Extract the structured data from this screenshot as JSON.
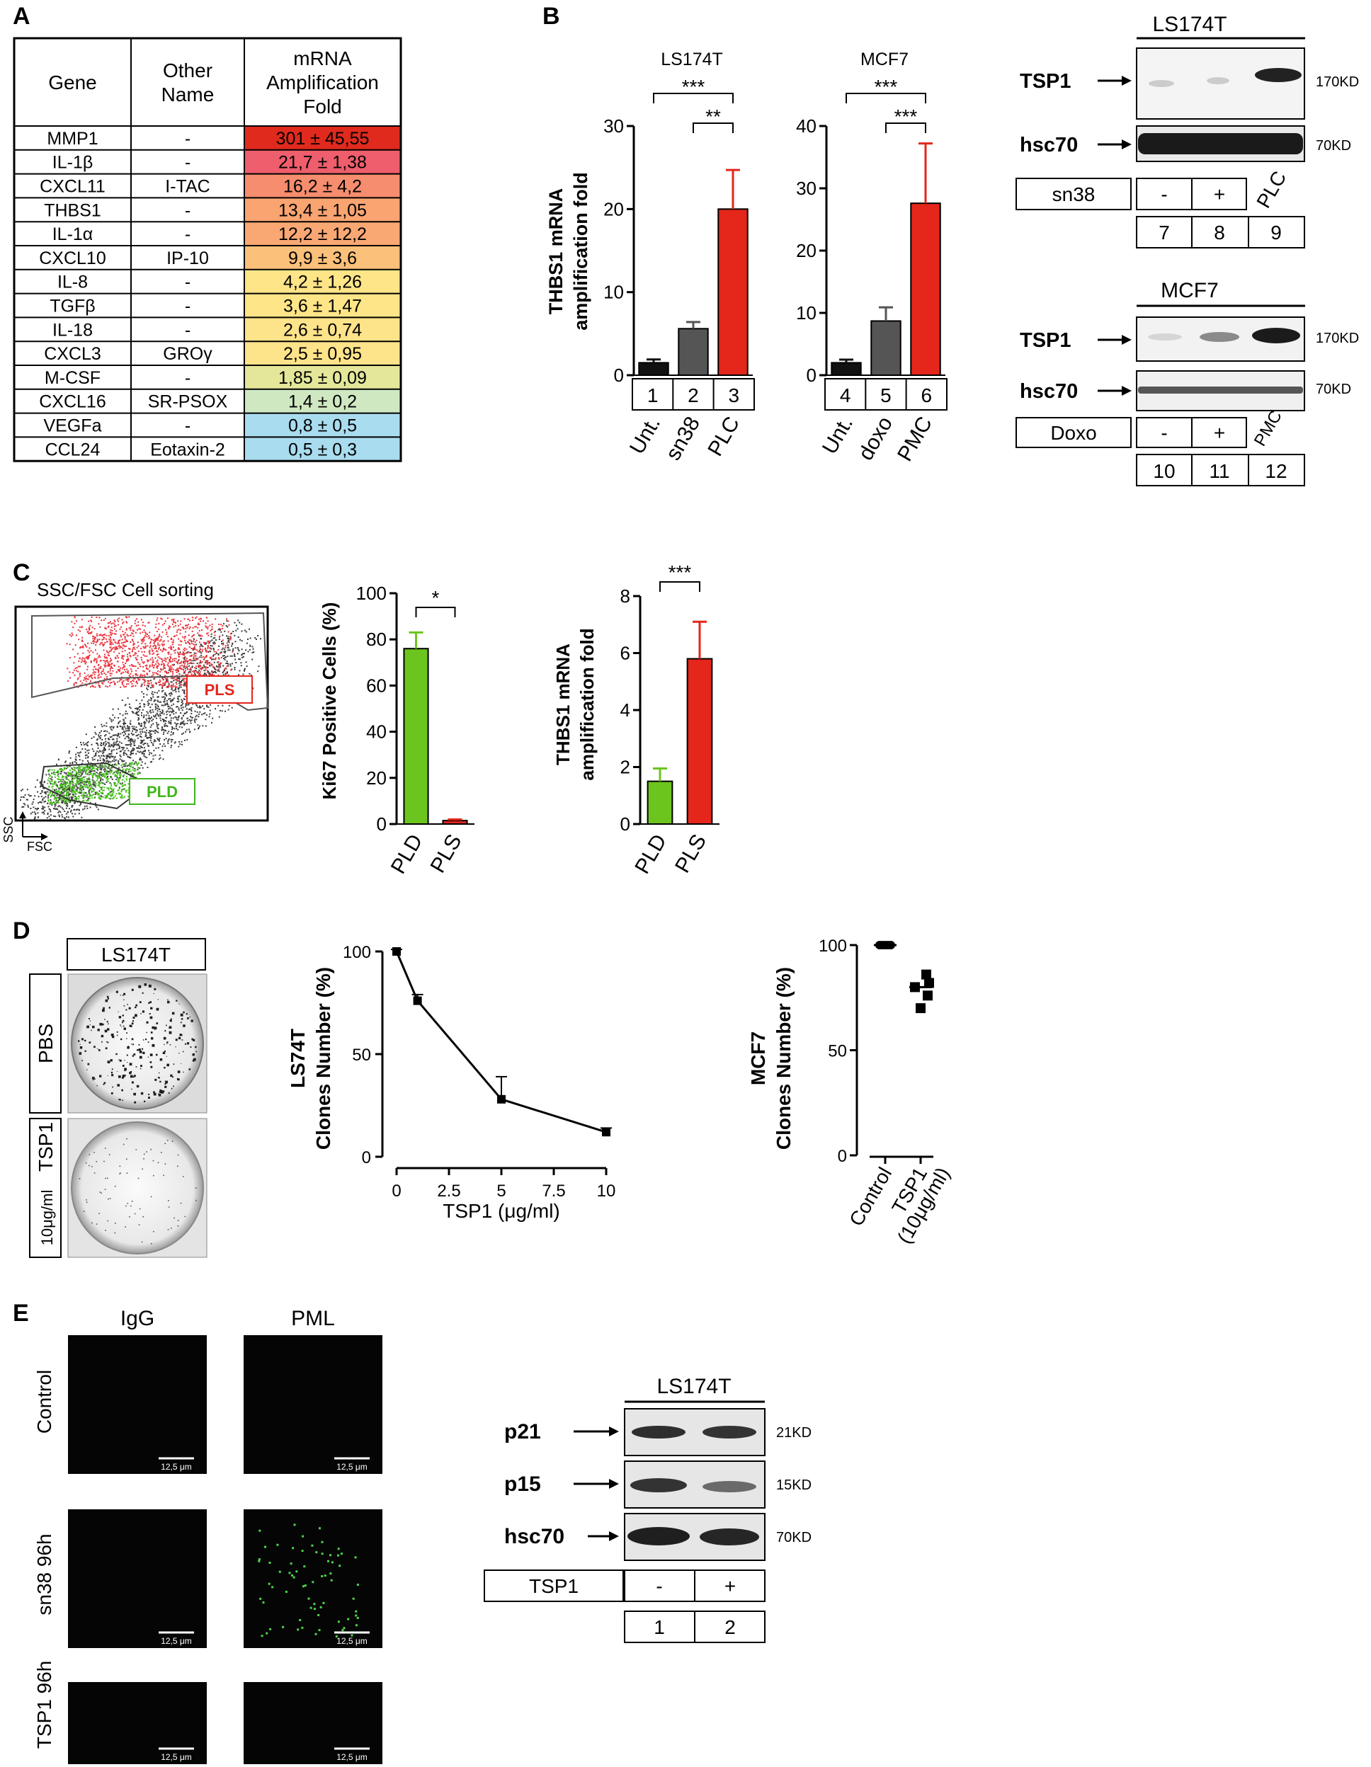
{
  "panel_labels": [
    "A",
    "B",
    "C",
    "D",
    "E"
  ],
  "panel_a": {
    "headers": [
      "Gene",
      "Other Name",
      "mRNA Amplification Fold"
    ],
    "header_lines": [
      [
        "Gene"
      ],
      [
        "Other",
        "Name"
      ],
      [
        "mRNA",
        "Amplification",
        "Fold"
      ]
    ],
    "rows": [
      {
        "gene": "MMP1",
        "other": "-",
        "fold": "301 ± 45,55",
        "color": "#df2a1d"
      },
      {
        "gene": "IL-1β",
        "other": "-",
        "fold": "21,7 ± 1,38",
        "color": "#ee5e6c"
      },
      {
        "gene": "CXCL11",
        "other": "I-TAC",
        "fold": "16,2 ± 4,2",
        "color": "#f58d6e"
      },
      {
        "gene": "THBS1",
        "other": "-",
        "fold": "13,4 ± 1,05",
        "color": "#f9a471"
      },
      {
        "gene": "IL-1α",
        "other": "-",
        "fold": "12,2 ± 12,2",
        "color": "#f9a873"
      },
      {
        "gene": "CXCL10",
        "other": "IP-10",
        "fold": "9,9 ± 3,6",
        "color": "#fbc07a"
      },
      {
        "gene": "IL-8",
        "other": "-",
        "fold": "4,2 ± 1,26",
        "color": "#fde588"
      },
      {
        "gene": "TGFβ",
        "other": "-",
        "fold": "3,6 ± 1,47",
        "color": "#fde588"
      },
      {
        "gene": "IL-18",
        "other": "-",
        "fold": "2,6 ± 0,74",
        "color": "#fde38a"
      },
      {
        "gene": "CXCL3",
        "other": "GROγ",
        "fold": "2,5 ± 0,95",
        "color": "#fde38a"
      },
      {
        "gene": "M-CSF",
        "other": "-",
        "fold": "1,85 ± 0,09",
        "color": "#e4e69a"
      },
      {
        "gene": "CXCL16",
        "other": "SR-PSOX",
        "fold": "1,4 ± 0,2",
        "color": "#cfe8c2"
      },
      {
        "gene": "VEGFa",
        "other": "-",
        "fold": "0,8 ± 0,5",
        "color": "#a9dcee"
      },
      {
        "gene": "CCL24",
        "other": "Eotaxin-2",
        "fold": "0,5 ± 0,3",
        "color": "#a9dcee"
      }
    ]
  },
  "panel_b": {
    "ylabel": [
      "THBS1 mRNA",
      "amplification fold"
    ],
    "lanes": [
      "1",
      "2",
      "3",
      "4",
      "5",
      "6"
    ],
    "sig": [
      "***",
      "**",
      "***",
      "***"
    ],
    "wb": [
      {
        "cell": "LS174T",
        "treat": "sn38",
        "lanes": [
          "-",
          "+",
          "PLC"
        ],
        "nums": [
          "7",
          "8",
          "9"
        ],
        "kd": [
          "170KD",
          "70KD"
        ],
        "prot": [
          "TSP1",
          "hsc70"
        ]
      },
      {
        "cell": "MCF7",
        "treat": "Doxo",
        "lanes": [
          "-",
          "+",
          "PMC"
        ],
        "nums": [
          "10",
          "11",
          "12"
        ],
        "kd": [
          "170KD",
          "70KD"
        ],
        "prot": [
          "TSP1",
          "hsc70"
        ]
      }
    ]
  },
  "panel_c": {
    "sort_title": "SSC/FSC Cell sorting",
    "gates": [
      "PLS",
      "PLD"
    ],
    "axes": [
      "SSC",
      "FSC"
    ],
    "ki67_ylabel": "Ki67 Positive Cells (%)",
    "thbs_ylabel": [
      "THBS1 mRNA",
      "amplification fold"
    ],
    "sig": [
      "*",
      "***"
    ]
  },
  "panel_d": {
    "plate_header": "LS174T",
    "plate_labels": [
      "PBS",
      "TSP1",
      "10μg/ml"
    ],
    "curve_ylabel": [
      "LS74T",
      "Clones Number (%)"
    ],
    "curve_xlabel": "TSP1 (μg/ml)",
    "dot_ylabel": [
      "MCF7",
      "Clones Number (%)"
    ],
    "dot_x": [
      "Control",
      "TSP1",
      "(10μg/ml)"
    ]
  },
  "panel_e": {
    "cols": [
      "IgG",
      "PML"
    ],
    "rows": [
      "Control",
      "sn38 96h",
      "TSP1 96h"
    ],
    "scale": "12,5 μm",
    "wb": {
      "cell": "LS174T",
      "prot": [
        "p21",
        "p15",
        "hsc70"
      ],
      "kd": [
        "21KD",
        "15KD",
        "70KD"
      ],
      "treat": "TSP1",
      "lanes": [
        "-",
        "+"
      ],
      "nums": [
        "1",
        "2"
      ]
    }
  },
  "chart_data": [
    {
      "type": "bar",
      "title": "LS174T",
      "categories": [
        "Unt.",
        "sn38",
        "PLC"
      ],
      "values": [
        1.5,
        5.6,
        20.0
      ],
      "errors": [
        0.4,
        0.8,
        4.7
      ],
      "colors": [
        "#111111",
        "#555555",
        "#e4261b"
      ],
      "ylim": [
        0,
        30
      ],
      "yticks": [
        0,
        10,
        20,
        30
      ]
    },
    {
      "type": "bar",
      "title": "MCF7",
      "categories": [
        "Unt.",
        "doxo",
        "PMC"
      ],
      "values": [
        2.0,
        8.7,
        27.6
      ],
      "errors": [
        0.5,
        2.2,
        9.6
      ],
      "colors": [
        "#111111",
        "#555555",
        "#e4261b"
      ],
      "ylim": [
        0,
        40
      ],
      "yticks": [
        0,
        10,
        20,
        30,
        40
      ]
    },
    {
      "type": "bar",
      "categories": [
        "PLD",
        "PLS"
      ],
      "values": [
        76,
        1.5
      ],
      "errors": [
        7,
        0.5
      ],
      "colors": [
        "#6cc51e",
        "#e4261b"
      ],
      "ylim": [
        0,
        100
      ],
      "yticks": [
        0,
        20,
        40,
        60,
        80,
        100
      ]
    },
    {
      "type": "bar",
      "categories": [
        "PLD",
        "PLS"
      ],
      "values": [
        1.5,
        5.8
      ],
      "errors": [
        0.45,
        1.3
      ],
      "colors": [
        "#6cc51e",
        "#e4261b"
      ],
      "ylim": [
        0,
        8
      ],
      "yticks": [
        0,
        2,
        4,
        6,
        8
      ]
    },
    {
      "type": "line",
      "x": [
        0,
        1,
        5,
        10
      ],
      "y": [
        100,
        76,
        28,
        12
      ],
      "errors": [
        1,
        3,
        11,
        2
      ],
      "xlim": [
        0,
        10
      ],
      "xticks": [
        "0",
        "2.5",
        "5",
        "7.5",
        "10"
      ],
      "ylim": [
        0,
        100
      ],
      "yticks": [
        0,
        50,
        100
      ]
    },
    {
      "type": "scatter",
      "groups": [
        "Control",
        "TSP1"
      ],
      "control": [
        100,
        100,
        100,
        100,
        100
      ],
      "treated": [
        86,
        82,
        80,
        76,
        70
      ],
      "means": [
        100,
        80
      ],
      "ylim": [
        0,
        100
      ],
      "yticks": [
        0,
        50,
        100
      ]
    }
  ]
}
